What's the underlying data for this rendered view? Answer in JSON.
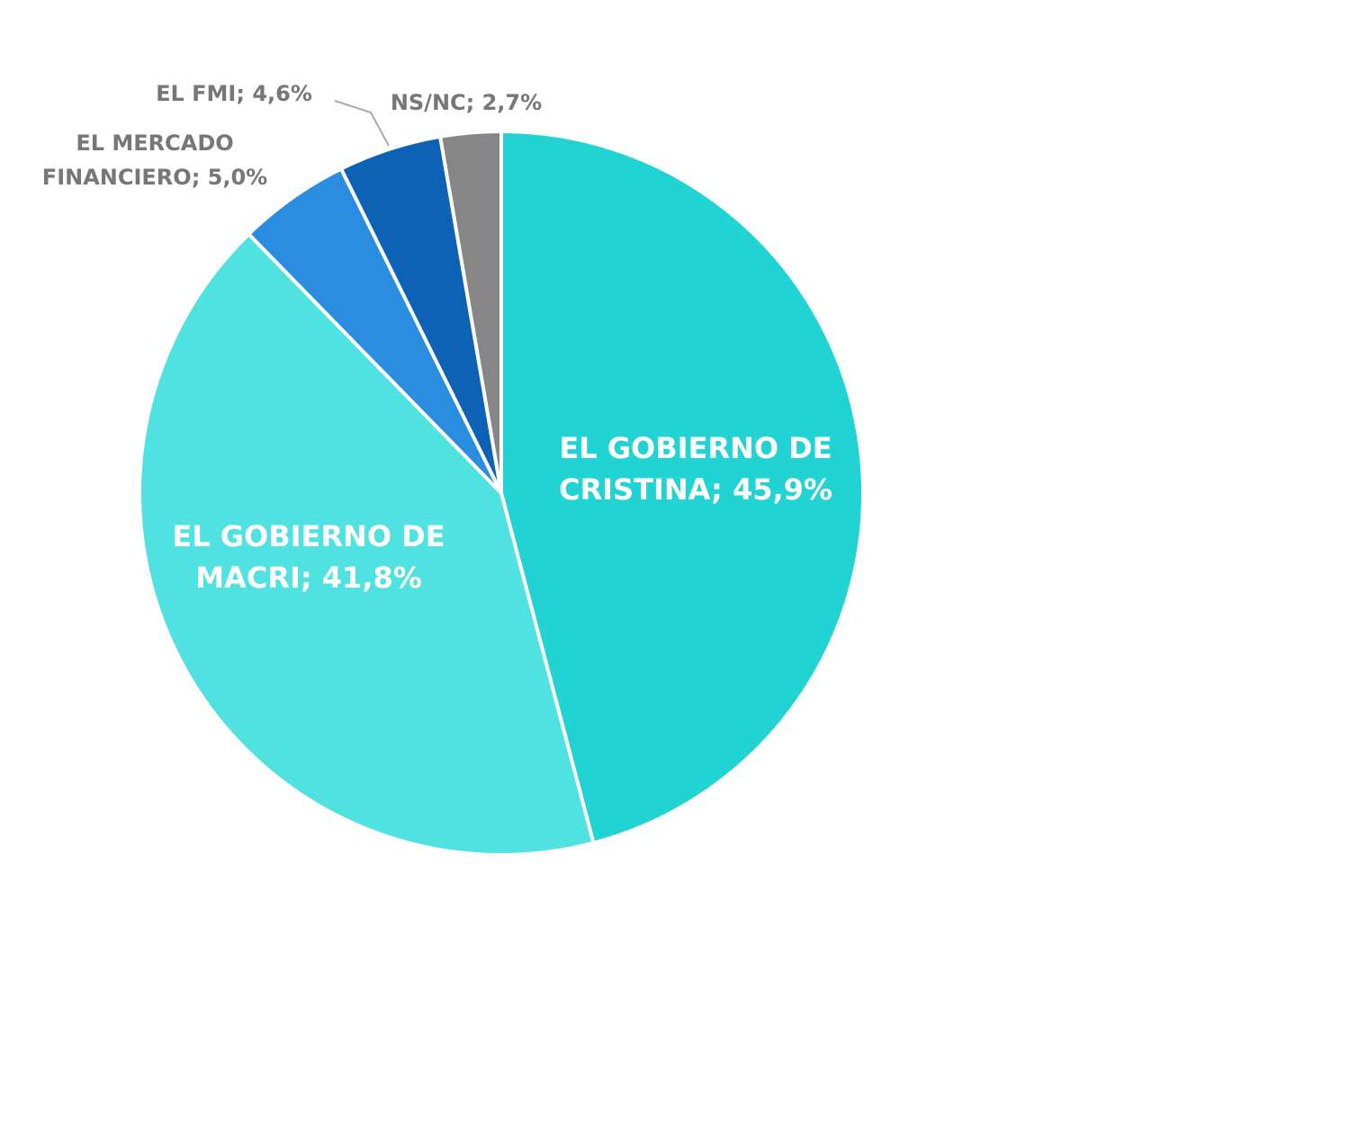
{
  "chart_data": {
    "type": "pie",
    "values": [
      45.9,
      41.8,
      5.0,
      4.6,
      2.7
    ],
    "value_labels": [
      [
        "EL GOBIERNO DE",
        "CRISTINA; 45,9%"
      ],
      [
        "EL GOBIERNO DE",
        "MACRI; 41,8%"
      ],
      [
        "EL MERCADO",
        "FINANCIERO; 5,0%"
      ],
      [
        "EL FMI; 4,6%"
      ],
      [
        "NS/NC; 2,7%"
      ]
    ],
    "colors": [
      "#22d3d3",
      "#50e1e1",
      "#2b8de0",
      "#0d62b6",
      "#868686"
    ]
  }
}
